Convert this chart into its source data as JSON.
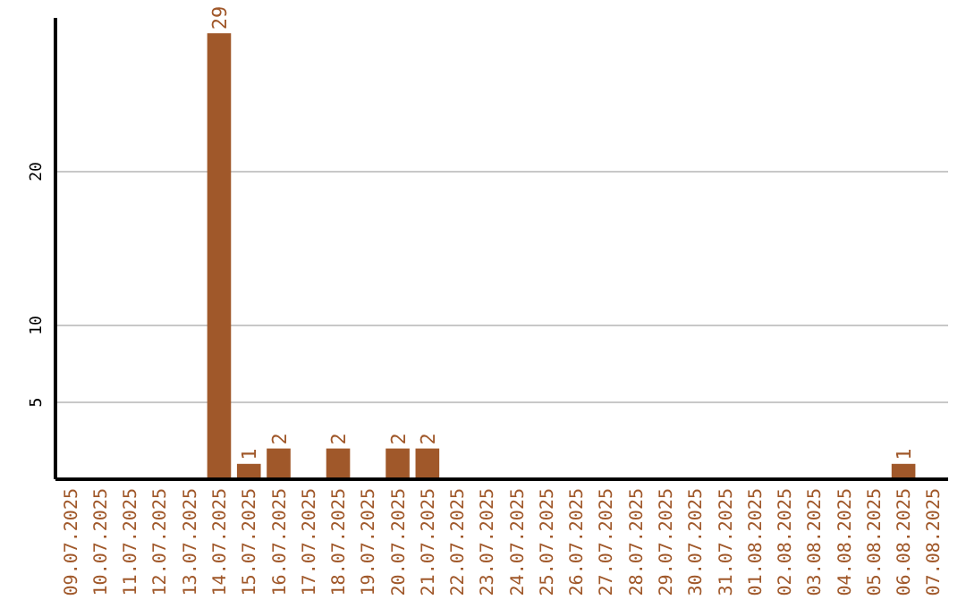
{
  "chart_data": {
    "type": "bar",
    "categories": [
      "09.07.2025",
      "10.07.2025",
      "11.07.2025",
      "12.07.2025",
      "13.07.2025",
      "14.07.2025",
      "15.07.2025",
      "16.07.2025",
      "17.07.2025",
      "18.07.2025",
      "19.07.2025",
      "20.07.2025",
      "21.07.2025",
      "22.07.2025",
      "23.07.2025",
      "24.07.2025",
      "25.07.2025",
      "26.07.2025",
      "27.07.2025",
      "28.07.2025",
      "29.07.2025",
      "30.07.2025",
      "31.07.2025",
      "01.08.2025",
      "02.08.2025",
      "03.08.2025",
      "04.08.2025",
      "05.08.2025",
      "06.08.2025",
      "07.08.2025"
    ],
    "values": [
      0,
      0,
      0,
      0,
      0,
      29,
      1,
      2,
      0,
      2,
      0,
      2,
      2,
      0,
      0,
      0,
      0,
      0,
      0,
      0,
      0,
      0,
      0,
      0,
      0,
      0,
      0,
      0,
      1,
      0
    ],
    "value_labels": [
      null,
      null,
      null,
      null,
      null,
      "29",
      "1",
      "2",
      null,
      "2",
      null,
      "2",
      "2",
      null,
      null,
      null,
      null,
      null,
      null,
      null,
      null,
      null,
      null,
      null,
      null,
      null,
      null,
      null,
      "1",
      null
    ],
    "color": "#a0582a",
    "ylim": [
      0,
      30
    ],
    "yticks": [
      5,
      10,
      20
    ],
    "grid": "y"
  }
}
